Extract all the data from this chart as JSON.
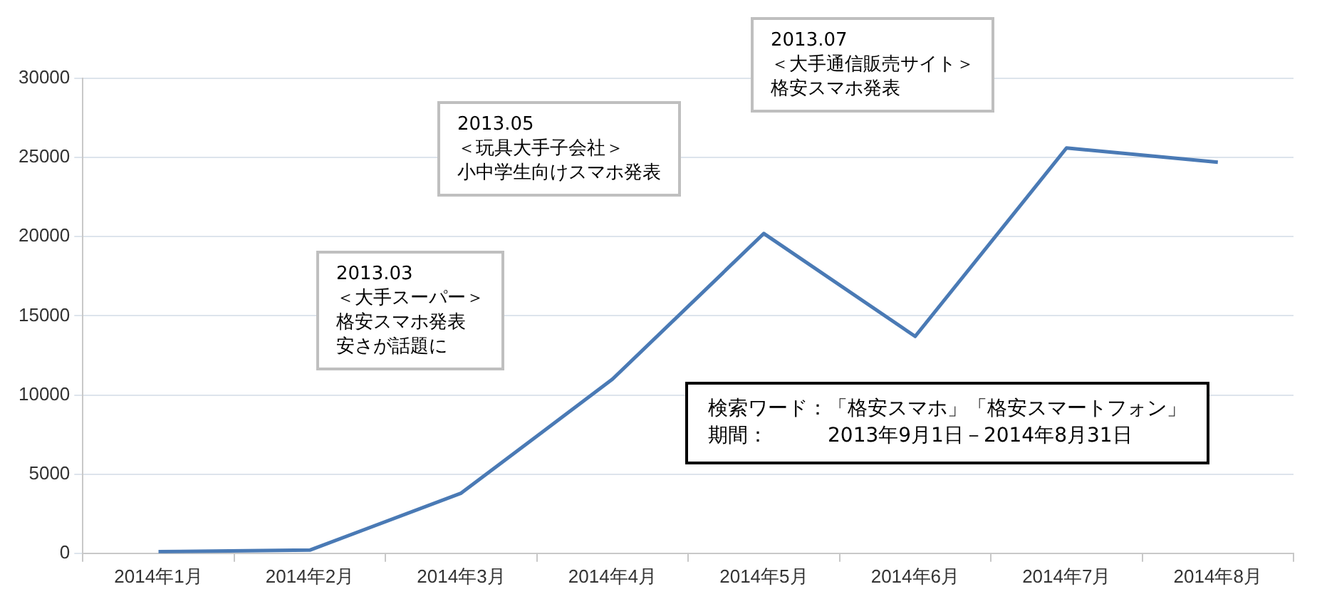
{
  "chart_data": {
    "type": "line",
    "categories": [
      "2014年1月",
      "2014年2月",
      "2014年3月",
      "2014年4月",
      "2014年5月",
      "2014年6月",
      "2014年7月",
      "2014年8月"
    ],
    "series": [
      {
        "color": "#4a7ab5",
        "values": [
          100,
          200,
          3800,
          11000,
          20200,
          13700,
          25600,
          24700
        ]
      }
    ],
    "ylim": [
      0,
      30000
    ],
    "yticks": [
      0,
      5000,
      10000,
      15000,
      20000,
      25000,
      30000
    ],
    "grid": "y",
    "legend": false,
    "marker": "none",
    "line_style": "solid",
    "annotations": [
      "2013.03",
      "＜大手スーパー＞",
      "格安スマホ発表",
      "安さが話題に",
      "2013.05",
      "＜玩具大手子会社＞",
      "小中学生向けスマホ発表",
      "2013.07",
      "＜大手通信販売サイト＞",
      "格安スマホ発表",
      "検索ワード：「格安スマホ」「格安スマートフォン」",
      "期間：　　　2013年9月1日－2014年8月31日"
    ]
  }
}
